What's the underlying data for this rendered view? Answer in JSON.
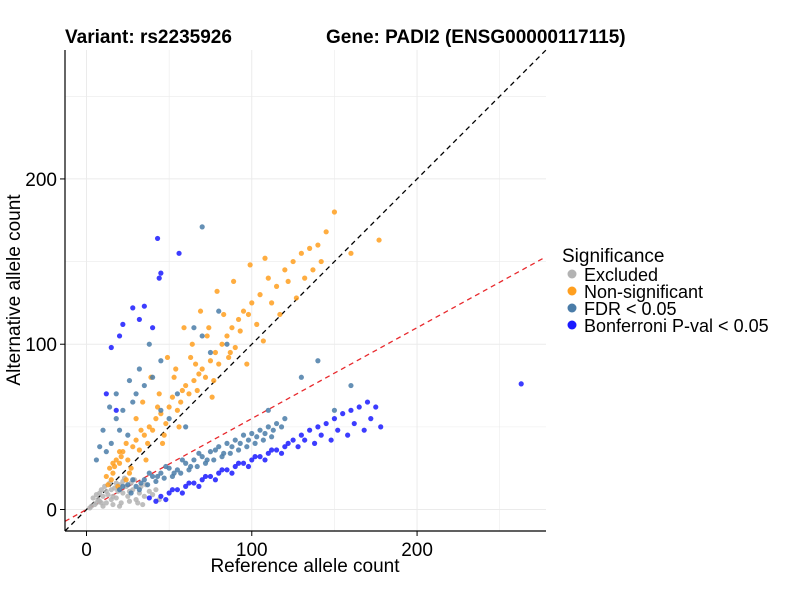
{
  "chart_data": {
    "type": "scatter",
    "title_left": "Variant: rs2235926",
    "title_right": "Gene: PADI2 (ENSG00000117115)",
    "xlabel": "Reference allele count",
    "ylabel": "Alternative allele count",
    "xlim": [
      -13,
      278
    ],
    "ylim": [
      -13,
      278
    ],
    "x_ticks": [
      0,
      100,
      200
    ],
    "y_ticks": [
      0,
      100,
      200
    ],
    "grid": true,
    "legend": {
      "title": "Significance",
      "placement": "right",
      "entries": [
        {
          "label": "Excluded",
          "color": "#b3b3b3"
        },
        {
          "label": "Non-significant",
          "color": "#ff9f1f"
        },
        {
          "label": "FDR < 0.05",
          "color": "#4a7ca8"
        },
        {
          "label": "Bonferroni P-val < 0.05",
          "color": "#1a1aff"
        }
      ]
    },
    "reference_lines": [
      {
        "name": "y = x",
        "slope": 1,
        "intercept": 0,
        "color": "#000000",
        "style": "dashed"
      },
      {
        "name": "ratio",
        "slope": 0.55,
        "intercept": 0,
        "color": "#e8292d",
        "style": "dashed"
      }
    ],
    "series": [
      {
        "name": "Excluded",
        "color": "#b3b3b3",
        "points": [
          [
            5,
            3
          ],
          [
            8,
            5
          ],
          [
            10,
            8
          ],
          [
            12,
            4
          ],
          [
            6,
            9
          ],
          [
            15,
            12
          ],
          [
            18,
            7
          ],
          [
            20,
            15
          ],
          [
            22,
            10
          ],
          [
            14,
            16
          ],
          [
            9,
            12
          ],
          [
            25,
            8
          ],
          [
            28,
            12
          ],
          [
            30,
            6
          ],
          [
            16,
            3
          ],
          [
            11,
            14
          ],
          [
            7,
            6
          ],
          [
            19,
            11
          ],
          [
            24,
            14
          ],
          [
            32,
            10
          ],
          [
            35,
            8
          ],
          [
            26,
            5
          ],
          [
            13,
            9
          ],
          [
            21,
            4
          ],
          [
            17,
            13
          ],
          [
            4,
            7
          ],
          [
            3,
            2
          ],
          [
            27,
            16
          ],
          [
            33,
            14
          ],
          [
            38,
            11
          ],
          [
            40,
            9
          ],
          [
            29,
            18
          ],
          [
            23,
            19
          ],
          [
            12,
            11
          ],
          [
            8,
            10
          ],
          [
            36,
            15
          ],
          [
            42,
            12
          ],
          [
            31,
            4
          ],
          [
            20,
            2
          ],
          [
            15,
            6
          ],
          [
            10,
            2
          ],
          [
            6,
            4
          ],
          [
            34,
            3
          ],
          [
            44,
            6
          ],
          [
            2,
            1
          ],
          [
            18,
            16
          ],
          [
            22,
            17
          ],
          [
            16,
            8
          ],
          [
            9,
            4
          ],
          [
            26,
            11
          ]
        ]
      },
      {
        "name": "Non-significant",
        "color": "#ff9f1f",
        "points": [
          [
            12,
            20
          ],
          [
            14,
            25
          ],
          [
            16,
            22
          ],
          [
            18,
            30
          ],
          [
            20,
            28
          ],
          [
            22,
            35
          ],
          [
            15,
            18
          ],
          [
            25,
            30
          ],
          [
            28,
            38
          ],
          [
            30,
            42
          ],
          [
            32,
            36
          ],
          [
            35,
            45
          ],
          [
            38,
            50
          ],
          [
            40,
            48
          ],
          [
            42,
            55
          ],
          [
            45,
            58
          ],
          [
            48,
            52
          ],
          [
            50,
            62
          ],
          [
            52,
            68
          ],
          [
            55,
            60
          ],
          [
            58,
            72
          ],
          [
            60,
            75
          ],
          [
            62,
            70
          ],
          [
            65,
            78
          ],
          [
            68,
            82
          ],
          [
            70,
            85
          ],
          [
            72,
            80
          ],
          [
            75,
            90
          ],
          [
            78,
            95
          ],
          [
            80,
            88
          ],
          [
            82,
            100
          ],
          [
            85,
            105
          ],
          [
            88,
            110
          ],
          [
            90,
            98
          ],
          [
            92,
            115
          ],
          [
            95,
            120
          ],
          [
            100,
            125
          ],
          [
            105,
            130
          ],
          [
            110,
            140
          ],
          [
            115,
            135
          ],
          [
            120,
            145
          ],
          [
            125,
            150
          ],
          [
            130,
            155
          ],
          [
            135,
            158
          ],
          [
            140,
            160
          ],
          [
            150,
            180
          ],
          [
            177,
            163
          ],
          [
            160,
            155
          ],
          [
            145,
            168
          ],
          [
            108,
            152
          ],
          [
            98,
            118
          ],
          [
            86,
            92
          ],
          [
            76,
            68
          ],
          [
            66,
            88
          ],
          [
            56,
            50
          ],
          [
            46,
            40
          ],
          [
            36,
            30
          ],
          [
            26,
            22
          ],
          [
            24,
            18
          ],
          [
            19,
            14
          ],
          [
            17,
            26
          ],
          [
            13,
            15
          ],
          [
            21,
            32
          ],
          [
            27,
            25
          ],
          [
            33,
            48
          ],
          [
            37,
            40
          ],
          [
            43,
            62
          ],
          [
            47,
            45
          ],
          [
            53,
            80
          ],
          [
            57,
            65
          ],
          [
            63,
            92
          ],
          [
            67,
            72
          ],
          [
            73,
            105
          ],
          [
            77,
            78
          ],
          [
            83,
            118
          ],
          [
            87,
            95
          ],
          [
            93,
            108
          ],
          [
            97,
            88
          ],
          [
            103,
            112
          ],
          [
            107,
            102
          ],
          [
            112,
            125
          ],
          [
            117,
            118
          ],
          [
            122,
            138
          ],
          [
            127,
            128
          ],
          [
            132,
            140
          ],
          [
            137,
            145
          ],
          [
            142,
            150
          ],
          [
            44,
            70
          ],
          [
            54,
            85
          ],
          [
            64,
            100
          ],
          [
            74,
            110
          ],
          [
            30,
            55
          ],
          [
            34,
            65
          ],
          [
            24,
            40
          ],
          [
            20,
            35
          ],
          [
            16,
            28
          ],
          [
            39,
            80
          ],
          [
            49,
            92
          ],
          [
            59,
            110
          ],
          [
            69,
            120
          ],
          [
            79,
            132
          ],
          [
            89,
            138
          ],
          [
            99,
            148
          ]
        ]
      },
      {
        "name": "FDR < 0.05",
        "color": "#4a7ca8",
        "points": [
          [
            20,
            12
          ],
          [
            25,
            15
          ],
          [
            30,
            14
          ],
          [
            35,
            18
          ],
          [
            40,
            20
          ],
          [
            45,
            22
          ],
          [
            50,
            25
          ],
          [
            55,
            24
          ],
          [
            60,
            28
          ],
          [
            65,
            30
          ],
          [
            70,
            32
          ],
          [
            75,
            35
          ],
          [
            80,
            38
          ],
          [
            85,
            40
          ],
          [
            90,
            42
          ],
          [
            95,
            45
          ],
          [
            100,
            46
          ],
          [
            105,
            48
          ],
          [
            110,
            50
          ],
          [
            115,
            52
          ],
          [
            120,
            55
          ],
          [
            28,
            18
          ],
          [
            33,
            16
          ],
          [
            38,
            22
          ],
          [
            43,
            20
          ],
          [
            48,
            26
          ],
          [
            53,
            22
          ],
          [
            58,
            30
          ],
          [
            63,
            26
          ],
          [
            68,
            34
          ],
          [
            73,
            30
          ],
          [
            78,
            36
          ],
          [
            83,
            34
          ],
          [
            88,
            38
          ],
          [
            93,
            40
          ],
          [
            98,
            42
          ],
          [
            103,
            44
          ],
          [
            108,
            46
          ],
          [
            113,
            48
          ],
          [
            118,
            50
          ],
          [
            22,
            14
          ],
          [
            27,
            10
          ],
          [
            32,
            12
          ],
          [
            37,
            15
          ],
          [
            42,
            17
          ],
          [
            47,
            19
          ],
          [
            52,
            20
          ],
          [
            57,
            22
          ],
          [
            62,
            24
          ],
          [
            67,
            26
          ],
          [
            72,
            28
          ],
          [
            77,
            30
          ],
          [
            82,
            32
          ],
          [
            87,
            34
          ],
          [
            92,
            36
          ],
          [
            97,
            38
          ],
          [
            102,
            40
          ],
          [
            107,
            42
          ],
          [
            112,
            44
          ],
          [
            18,
            55
          ],
          [
            22,
            60
          ],
          [
            25,
            45
          ],
          [
            28,
            65
          ],
          [
            15,
            40
          ],
          [
            20,
            48
          ],
          [
            12,
            35
          ],
          [
            30,
            70
          ],
          [
            35,
            75
          ],
          [
            40,
            80
          ],
          [
            45,
            60
          ],
          [
            50,
            55
          ],
          [
            55,
            70
          ],
          [
            60,
            50
          ],
          [
            65,
            110
          ],
          [
            70,
            105
          ],
          [
            75,
            95
          ],
          [
            80,
            120
          ],
          [
            85,
            100
          ],
          [
            110,
            60
          ],
          [
            140,
            90
          ],
          [
            160,
            75
          ],
          [
            130,
            80
          ],
          [
            150,
            60
          ],
          [
            70,
            171
          ],
          [
            45,
            90
          ],
          [
            38,
            100
          ],
          [
            32,
            85
          ],
          [
            26,
            78
          ],
          [
            18,
            70
          ],
          [
            14,
            62
          ],
          [
            10,
            48
          ],
          [
            8,
            38
          ],
          [
            6,
            30
          ]
        ]
      },
      {
        "name": "Bonferroni P-val < 0.05",
        "color": "#1a1aff",
        "points": [
          [
            45,
            8
          ],
          [
            50,
            10
          ],
          [
            55,
            12
          ],
          [
            60,
            14
          ],
          [
            65,
            16
          ],
          [
            70,
            18
          ],
          [
            75,
            20
          ],
          [
            80,
            22
          ],
          [
            85,
            24
          ],
          [
            90,
            26
          ],
          [
            95,
            28
          ],
          [
            100,
            30
          ],
          [
            105,
            32
          ],
          [
            110,
            34
          ],
          [
            115,
            36
          ],
          [
            120,
            38
          ],
          [
            125,
            42
          ],
          [
            130,
            45
          ],
          [
            135,
            48
          ],
          [
            140,
            50
          ],
          [
            145,
            52
          ],
          [
            150,
            55
          ],
          [
            155,
            58
          ],
          [
            160,
            60
          ],
          [
            165,
            62
          ],
          [
            170,
            65
          ],
          [
            175,
            62
          ],
          [
            178,
            50
          ],
          [
            172,
            55
          ],
          [
            168,
            48
          ],
          [
            162,
            52
          ],
          [
            158,
            45
          ],
          [
            152,
            48
          ],
          [
            148,
            42
          ],
          [
            142,
            45
          ],
          [
            138,
            40
          ],
          [
            132,
            42
          ],
          [
            128,
            38
          ],
          [
            122,
            40
          ],
          [
            118,
            34
          ],
          [
            112,
            36
          ],
          [
            108,
            30
          ],
          [
            102,
            32
          ],
          [
            98,
            26
          ],
          [
            92,
            28
          ],
          [
            88,
            22
          ],
          [
            82,
            24
          ],
          [
            78,
            18
          ],
          [
            72,
            20
          ],
          [
            68,
            14
          ],
          [
            62,
            16
          ],
          [
            58,
            10
          ],
          [
            52,
            12
          ],
          [
            48,
            6
          ],
          [
            42,
            5
          ],
          [
            38,
            7
          ],
          [
            263,
            76
          ],
          [
            43,
            164
          ],
          [
            56,
            155
          ],
          [
            45,
            143
          ],
          [
            35,
            123
          ],
          [
            32,
            115
          ],
          [
            28,
            122
          ],
          [
            15,
            98
          ],
          [
            20,
            105
          ],
          [
            22,
            112
          ],
          [
            40,
            110
          ],
          [
            44,
            140
          ],
          [
            12,
            70
          ],
          [
            18,
            60
          ]
        ]
      }
    ]
  }
}
